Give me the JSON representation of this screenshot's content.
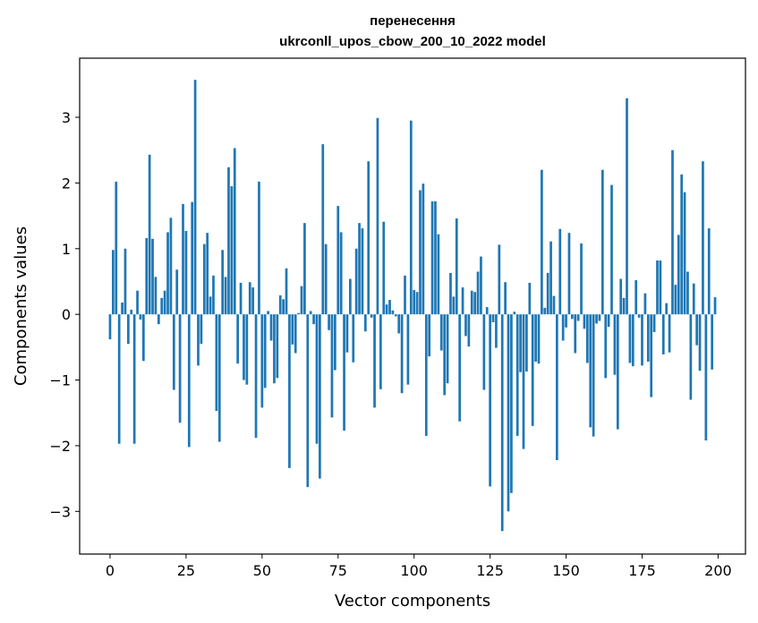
{
  "chart_data": {
    "type": "bar",
    "title": "перенесення",
    "subtitle": "ukrconll_upos_cbow_200_10_2022 model",
    "xlabel": "Vector components",
    "ylabel": "Components values",
    "xlim": [
      -10,
      209
    ],
    "ylim": [
      -3.65,
      3.9
    ],
    "xticks": [
      0,
      25,
      50,
      75,
      100,
      125,
      150,
      175,
      200
    ],
    "yticks": [
      -3,
      -2,
      -1,
      0,
      1,
      2,
      3
    ],
    "grid": false,
    "bar_color": "#1f77b4",
    "x": [
      0,
      1,
      2,
      3,
      4,
      5,
      6,
      7,
      8,
      9,
      10,
      11,
      12,
      13,
      14,
      15,
      16,
      17,
      18,
      19,
      20,
      21,
      22,
      23,
      24,
      25,
      26,
      27,
      28,
      29,
      30,
      31,
      32,
      33,
      34,
      35,
      36,
      37,
      38,
      39,
      40,
      41,
      42,
      43,
      44,
      45,
      46,
      47,
      48,
      49,
      50,
      51,
      52,
      53,
      54,
      55,
      56,
      57,
      58,
      59,
      60,
      61,
      62,
      63,
      64,
      65,
      66,
      67,
      68,
      69,
      70,
      71,
      72,
      73,
      74,
      75,
      76,
      77,
      78,
      79,
      80,
      81,
      82,
      83,
      84,
      85,
      86,
      87,
      88,
      89,
      90,
      91,
      92,
      93,
      94,
      95,
      96,
      97,
      98,
      99,
      100,
      101,
      102,
      103,
      104,
      105,
      106,
      107,
      108,
      109,
      110,
      111,
      112,
      113,
      114,
      115,
      116,
      117,
      118,
      119,
      120,
      121,
      122,
      123,
      124,
      125,
      126,
      127,
      128,
      129,
      130,
      131,
      132,
      133,
      134,
      135,
      136,
      137,
      138,
      139,
      140,
      141,
      142,
      143,
      144,
      145,
      146,
      147,
      148,
      149,
      150,
      151,
      152,
      153,
      154,
      155,
      156,
      157,
      158,
      159,
      160,
      161,
      162,
      163,
      164,
      165,
      166,
      167,
      168,
      169,
      170,
      171,
      172,
      173,
      174,
      175,
      176,
      177,
      178,
      179,
      180,
      181,
      182,
      183,
      184,
      185,
      186,
      187,
      188,
      189,
      190,
      191,
      192,
      193,
      194,
      195,
      196,
      197,
      198,
      199
    ],
    "values": [
      -0.38,
      0.98,
      2.02,
      -1.97,
      0.18,
      1.0,
      -0.45,
      0.07,
      -1.97,
      0.36,
      -0.08,
      -0.71,
      1.16,
      2.43,
      1.15,
      0.57,
      -0.15,
      0.25,
      0.36,
      1.25,
      1.47,
      -1.15,
      0.68,
      -1.65,
      1.68,
      1.27,
      -2.02,
      1.71,
      3.57,
      -0.78,
      -0.45,
      1.07,
      1.24,
      0.27,
      0.59,
      -1.47,
      -1.94,
      0.98,
      0.57,
      2.24,
      1.95,
      2.53,
      -0.75,
      0.48,
      -1.0,
      -1.07,
      0.49,
      0.41,
      -1.88,
      2.02,
      -1.42,
      -1.12,
      0.05,
      -0.4,
      -1.05,
      -0.97,
      0.29,
      0.23,
      0.7,
      -2.34,
      -0.46,
      -0.59,
      0.02,
      0.43,
      1.39,
      -2.63,
      0.05,
      -0.15,
      -1.97,
      -2.5,
      2.59,
      1.07,
      -0.24,
      -1.57,
      -0.85,
      1.65,
      1.25,
      -1.77,
      -0.58,
      0.54,
      -0.73,
      1.0,
      1.39,
      1.31,
      -0.26,
      2.33,
      -0.05,
      -1.42,
      2.99,
      -1.14,
      1.41,
      0.15,
      0.22,
      0.06,
      -0.03,
      -0.29,
      -1.2,
      0.59,
      -1.07,
      2.95,
      0.37,
      0.34,
      1.89,
      1.99,
      -1.85,
      -0.64,
      1.72,
      1.72,
      1.22,
      -0.55,
      -1.23,
      -1.05,
      0.63,
      0.27,
      1.46,
      -1.63,
      0.41,
      -0.33,
      -0.49,
      0.36,
      0.34,
      0.65,
      0.88,
      -1.15,
      0.11,
      -2.62,
      -0.12,
      -0.51,
      1.06,
      -3.3,
      0.49,
      -3.0,
      -2.72,
      0.04,
      -1.85,
      -0.88,
      -2.05,
      -0.87,
      0.48,
      -1.7,
      -0.72,
      -0.75,
      2.2,
      0.1,
      0.63,
      1.11,
      0.28,
      -2.22,
      1.3,
      -0.4,
      -0.2,
      1.24,
      -0.07,
      -0.59,
      -0.1,
      1.08,
      -0.22,
      -0.74,
      -1.72,
      -1.86,
      -0.14,
      -0.1,
      2.2,
      -0.97,
      -0.19,
      1.97,
      -0.92,
      -1.75,
      0.54,
      0.25,
      3.29,
      -0.74,
      -0.79,
      0.52,
      -0.05,
      -0.78,
      0.32,
      -0.72,
      -1.26,
      -0.27,
      0.82,
      0.82,
      -0.61,
      0.17,
      -0.58,
      2.5,
      0.45,
      1.21,
      2.13,
      1.86,
      0.65,
      -1.3,
      0.47,
      -0.47,
      -0.86,
      2.33,
      -1.92,
      1.31,
      -0.84,
      0.26
    ]
  }
}
